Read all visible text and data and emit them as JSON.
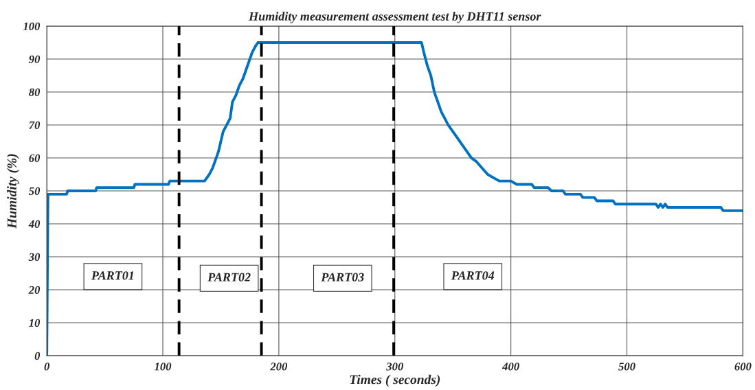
{
  "chart_data": {
    "type": "line",
    "title": "Humidity measurement assessment test by DHT11 sensor",
    "xlabel": "Times ( seconds)",
    "ylabel": "Humidity (%)",
    "x": [
      0,
      1,
      17,
      18,
      42,
      43,
      75,
      76,
      105,
      106,
      136,
      140,
      143,
      146,
      148,
      150,
      152,
      155,
      158,
      160,
      163,
      166,
      169,
      171,
      174,
      177,
      180,
      182,
      323,
      325,
      328,
      331,
      334,
      337,
      340,
      343,
      346,
      350,
      354,
      358,
      362,
      366,
      370,
      375,
      380,
      385,
      390,
      400,
      405,
      418,
      420,
      432,
      435,
      445,
      447,
      460,
      462,
      472,
      474,
      488,
      490,
      525,
      527,
      529,
      531,
      533,
      535,
      581,
      583,
      600
    ],
    "series": [
      {
        "color": "#0070c0",
        "values": [
          0,
          49,
          49,
          50,
          50,
          51,
          51,
          52,
          52,
          53,
          53,
          55,
          57,
          60,
          62,
          65,
          68,
          70,
          72,
          77,
          79,
          82,
          84,
          86,
          89,
          92,
          94,
          95,
          95,
          92,
          88,
          85,
          80,
          77,
          74,
          72,
          70,
          68,
          66,
          64,
          62,
          60,
          59,
          57,
          55,
          54,
          53,
          53,
          52,
          52,
          51,
          51,
          50,
          50,
          49,
          49,
          48,
          48,
          47,
          47,
          46,
          46,
          45,
          46,
          45,
          46,
          45,
          45,
          44,
          44
        ]
      }
    ],
    "xlim": [
      0,
      600
    ],
    "xticks": [
      0,
      100,
      200,
      300,
      400,
      500,
      600
    ],
    "ylim": [
      0,
      100
    ],
    "yticks": [
      0,
      10,
      20,
      30,
      40,
      50,
      60,
      70,
      80,
      90,
      100
    ],
    "grid": true,
    "line_style": "solid",
    "marker": "none",
    "ref_lines": [
      {
        "axis": "x",
        "value": 114,
        "color": "#000000",
        "line_style": "dashed"
      },
      {
        "axis": "x",
        "value": 185,
        "color": "#000000",
        "line_style": "dashed"
      },
      {
        "axis": "x",
        "value": 299,
        "color": "#000000",
        "line_style": "dashed"
      }
    ],
    "annotations": [
      "PART01",
      "PART02",
      "PART03",
      "PART04"
    ]
  }
}
